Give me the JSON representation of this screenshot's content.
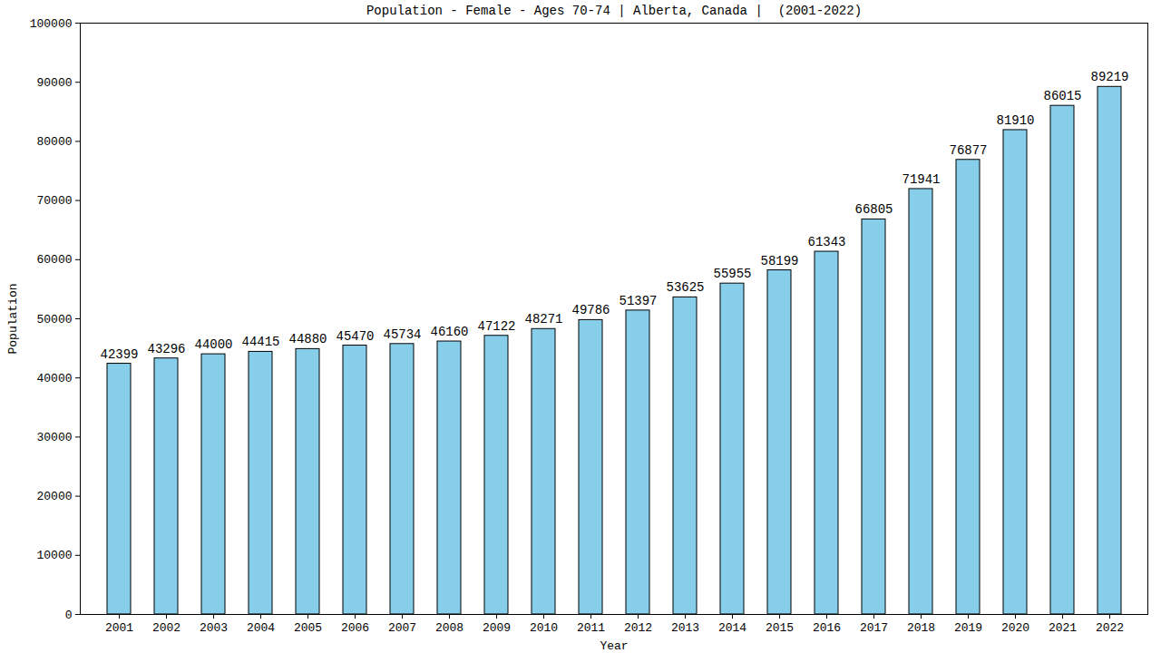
{
  "chart_data": {
    "type": "bar",
    "title": "Population - Female - Ages 70-74 | Alberta, Canada |  (2001-2022)",
    "x_label": "Year",
    "y_label": "Population",
    "categories": [
      "2001",
      "2002",
      "2003",
      "2004",
      "2005",
      "2006",
      "2007",
      "2008",
      "2009",
      "2010",
      "2011",
      "2012",
      "2013",
      "2014",
      "2015",
      "2016",
      "2017",
      "2018",
      "2019",
      "2020",
      "2021",
      "2022"
    ],
    "values": [
      42399,
      43296,
      44000,
      44415,
      44880,
      45470,
      45734,
      46160,
      47122,
      48271,
      49786,
      51397,
      53625,
      55955,
      58199,
      61343,
      66805,
      71941,
      76877,
      81910,
      86015,
      89219
    ],
    "color": "#87ceeb",
    "ylim": [
      0,
      100000
    ],
    "yticks": [
      0,
      10000,
      20000,
      30000,
      40000,
      50000,
      60000,
      70000,
      80000,
      90000,
      100000
    ],
    "grid": false,
    "data_labels": true
  }
}
